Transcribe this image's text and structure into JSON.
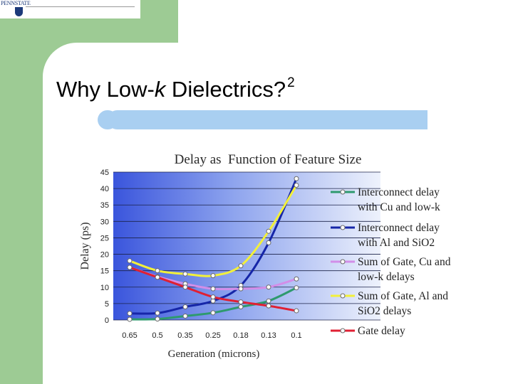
{
  "logo": {
    "text": "PENNSTATE"
  },
  "slide": {
    "title_pre": "Why Low-",
    "title_italic": "k",
    "title_post": " Dielectrics?",
    "title_sup": "2"
  },
  "chart_data": {
    "type": "line",
    "title": "Delay as  Function of Feature Size",
    "xlabel": "Generation (microns)",
    "ylabel": "Delay (ps)",
    "categories": [
      "0.65",
      "0.5",
      "0.35",
      "0.25",
      "0.18",
      "0.13",
      "0.1"
    ],
    "y_ticks": [
      "45",
      "40",
      "35",
      "30",
      "25",
      "20",
      "15",
      "10",
      "5",
      "0"
    ],
    "ylim": [
      0,
      45
    ],
    "grid": true,
    "legend_position": "right",
    "series": [
      {
        "name": "Interconnect delay with Cu and low-k",
        "color": "#2e9a6e",
        "values": [
          0.2,
          0.3,
          1.2,
          2.2,
          4,
          5.8,
          9.8
        ]
      },
      {
        "name": "Interconnect delay with Al and SiO2",
        "color": "#1626a8",
        "values": [
          2,
          2.1,
          4,
          5.8,
          10.5,
          23.5,
          43
        ]
      },
      {
        "name": "Sum of Gate, Cu and low-k delays",
        "color": "#d28ee8",
        "values": [
          16,
          13.2,
          11,
          9.5,
          9.5,
          10,
          12.5
        ]
      },
      {
        "name": "Sum of Gate, Al and SiO2 delays",
        "color": "#f2f03a",
        "values": [
          18,
          15,
          14,
          13.5,
          16.5,
          27,
          41
        ]
      },
      {
        "name": "Gate delay",
        "color": "#e02033",
        "values": [
          16,
          13,
          10,
          7,
          5.5,
          4.3,
          2.8
        ]
      }
    ],
    "legend_labels": [
      [
        "Interconnect delay",
        "with Cu and low-k"
      ],
      [
        "Interconnect delay",
        "with Al and SiO2"
      ],
      [
        "Sum of Gate, Cu and",
        "low-k delays"
      ],
      [
        "Sum of Gate, Al and",
        "SiO2 delays"
      ],
      [
        "Gate delay"
      ]
    ]
  }
}
